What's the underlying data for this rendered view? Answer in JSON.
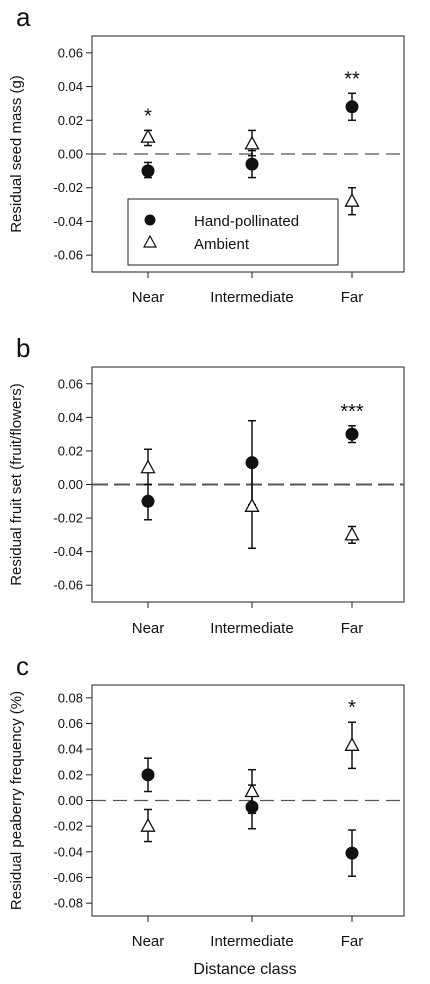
{
  "figure": {
    "xlabel": "Distance class"
  },
  "legend": {
    "entries": [
      "Hand-pollinated",
      "Ambient"
    ]
  },
  "chart_data": [
    {
      "panel": "a",
      "type": "scatter",
      "categories": [
        "Near",
        "Intermediate",
        "Far"
      ],
      "ylabel": "Residual seed mass (g)",
      "ylim": [
        -0.07,
        0.07
      ],
      "yticks": [
        0.06,
        0.04,
        0.02,
        0.0,
        -0.02,
        -0.04,
        -0.06
      ],
      "yticklabels": [
        "0.06",
        "0.04",
        "0.02",
        "0.00",
        "-0.02",
        "-0.04",
        "-0.06"
      ],
      "reference_line": 0,
      "series": [
        {
          "name": "Hand-pollinated",
          "marker": "filled-circle",
          "values": [
            -0.01,
            -0.006,
            0.028
          ],
          "err_low": [
            -0.014,
            -0.014,
            0.02
          ],
          "err_high": [
            -0.005,
            0.002,
            0.036
          ]
        },
        {
          "name": "Ambient",
          "marker": "open-triangle",
          "values": [
            0.01,
            0.006,
            -0.028
          ],
          "err_low": [
            0.005,
            -0.001,
            -0.036
          ],
          "err_high": [
            0.014,
            0.014,
            -0.02
          ]
        }
      ],
      "significance": [
        "*",
        "",
        "**"
      ],
      "legend_position": "lower-center"
    },
    {
      "panel": "b",
      "type": "scatter",
      "categories": [
        "Near",
        "Intermediate",
        "Far"
      ],
      "ylabel": "Residual fruit set (fruit/flowers)",
      "ylim": [
        -0.07,
        0.07
      ],
      "yticks": [
        0.06,
        0.04,
        0.02,
        0.0,
        -0.02,
        -0.04,
        -0.06
      ],
      "yticklabels": [
        "0.06",
        "0.04",
        "0.02",
        "0.00",
        "-0.02",
        "-0.04",
        "-0.06"
      ],
      "reference_line": 0,
      "series": [
        {
          "name": "Hand-pollinated",
          "marker": "filled-circle",
          "values": [
            -0.01,
            0.013,
            0.03
          ],
          "err_low": [
            -0.021,
            -0.012,
            0.025
          ],
          "err_high": [
            0.0,
            0.038,
            0.035
          ]
        },
        {
          "name": "Ambient",
          "marker": "open-triangle",
          "values": [
            0.01,
            -0.013,
            -0.03
          ],
          "err_low": [
            0.0,
            -0.038,
            -0.035
          ],
          "err_high": [
            0.021,
            0.012,
            -0.025
          ]
        }
      ],
      "significance": [
        "",
        "",
        "***"
      ]
    },
    {
      "panel": "c",
      "type": "scatter",
      "categories": [
        "Near",
        "Intermediate",
        "Far"
      ],
      "ylabel": "Residual peaberry frequency (%)",
      "ylim": [
        -0.09,
        0.09
      ],
      "yticks": [
        0.08,
        0.06,
        0.04,
        0.02,
        0.0,
        -0.02,
        -0.04,
        -0.06,
        -0.08
      ],
      "yticklabels": [
        "0.08",
        "0.06",
        "0.04",
        "0.02",
        "0.00",
        "-0.02",
        "-0.04",
        "-0.06",
        "-0.08"
      ],
      "reference_line": 0,
      "series": [
        {
          "name": "Hand-pollinated",
          "marker": "filled-circle",
          "values": [
            0.02,
            -0.005,
            -0.041
          ],
          "err_low": [
            0.007,
            -0.022,
            -0.059
          ],
          "err_high": [
            0.033,
            0.012,
            -0.023
          ]
        },
        {
          "name": "Ambient",
          "marker": "open-triangle",
          "values": [
            -0.02,
            0.007,
            0.043
          ],
          "err_low": [
            -0.032,
            -0.01,
            0.025
          ],
          "err_high": [
            -0.007,
            0.024,
            0.061
          ]
        }
      ],
      "significance": [
        "",
        "",
        "*"
      ]
    }
  ]
}
